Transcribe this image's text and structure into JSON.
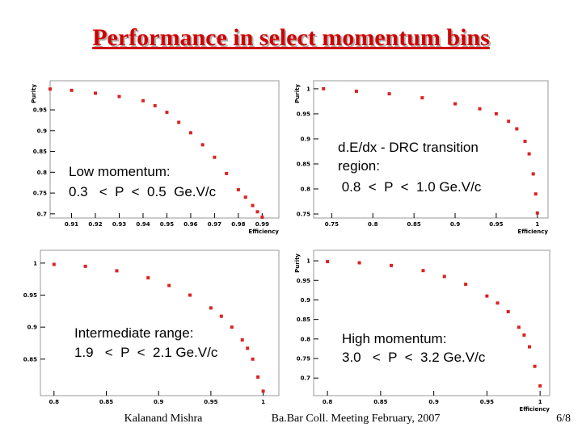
{
  "title": "Performance in select momentum bins",
  "footer": {
    "author": "Kalanand Mishra",
    "meeting": "Ba.Bar Coll. Meeting February, 2007",
    "page": "6/8"
  },
  "chart_data": [
    {
      "type": "scatter",
      "ylabel": "Purity",
      "xlabel": "Efficiency",
      "annotation": [
        "Low momentum:",
        "0.3   <  P  <  0.5  Ge.V/c"
      ],
      "color": "#dd2222",
      "x": [
        0.901,
        0.91,
        0.92,
        0.93,
        0.94,
        0.945,
        0.95,
        0.955,
        0.96,
        0.965,
        0.97,
        0.975,
        0.98,
        0.983,
        0.986,
        0.988,
        0.99
      ],
      "values": [
        1.0,
        0.997,
        0.99,
        0.982,
        0.972,
        0.96,
        0.944,
        0.92,
        0.895,
        0.866,
        0.836,
        0.797,
        0.758,
        0.74,
        0.72,
        0.705,
        0.692
      ],
      "xlim": [
        0.901,
        0.997
      ],
      "ylim": [
        0.69,
        1.02
      ],
      "xticks": [
        0.91,
        0.92,
        0.93,
        0.94,
        0.95,
        0.96,
        0.97,
        0.98,
        0.99
      ],
      "yticks": [
        0.7,
        0.75,
        0.8,
        0.85,
        0.9,
        0.95
      ]
    },
    {
      "type": "scatter",
      "ylabel": "Purity",
      "xlabel": "Efficiency",
      "annotation": [
        "d.E/dx - DRC transition",
        "region:",
        " 0.8  <  P  <  1.0 Ge.V/c"
      ],
      "color": "#dd2222",
      "x": [
        0.74,
        0.78,
        0.82,
        0.86,
        0.9,
        0.93,
        0.95,
        0.965,
        0.975,
        0.985,
        0.99,
        0.995,
        0.998,
        1.0
      ],
      "values": [
        1.0,
        0.995,
        0.99,
        0.982,
        0.97,
        0.96,
        0.95,
        0.935,
        0.92,
        0.895,
        0.87,
        0.83,
        0.79,
        0.752
      ],
      "xlim": [
        0.728,
        1.013
      ],
      "ylim": [
        0.742,
        1.016
      ],
      "xticks": [
        0.75,
        0.8,
        0.85,
        0.9,
        0.95,
        1
      ],
      "yticks": [
        0.75,
        0.8,
        0.85,
        0.9,
        0.95,
        1
      ]
    },
    {
      "type": "scatter",
      "annotation": [
        "Intermediate range:",
        "1.9   <  P  <  2.1 Ge.V/c"
      ],
      "color": "#dd2222",
      "x": [
        0.8,
        0.83,
        0.86,
        0.89,
        0.91,
        0.93,
        0.95,
        0.96,
        0.97,
        0.98,
        0.985,
        0.99,
        0.995,
        1.0
      ],
      "values": [
        0.998,
        0.995,
        0.988,
        0.977,
        0.965,
        0.95,
        0.93,
        0.917,
        0.9,
        0.88,
        0.867,
        0.85,
        0.822,
        0.8
      ],
      "xlim": [
        0.787,
        1.015
      ],
      "ylim": [
        0.793,
        1.02
      ],
      "xticks": [
        0.8,
        0.85,
        0.9,
        0.95,
        1
      ],
      "yticks": [
        0.85,
        0.9,
        0.95,
        1
      ]
    },
    {
      "type": "scatter",
      "ylabel": "Purity",
      "xlabel": "Efficiency",
      "annotation": [
        "High momentum:",
        "3.0   <  P  <  3.2 Ge.V/c"
      ],
      "color": "#dd2222",
      "x": [
        0.8,
        0.83,
        0.86,
        0.89,
        0.91,
        0.93,
        0.95,
        0.96,
        0.97,
        0.98,
        0.985,
        0.99,
        0.995,
        1.0
      ],
      "values": [
        0.998,
        0.995,
        0.988,
        0.975,
        0.96,
        0.94,
        0.91,
        0.892,
        0.87,
        0.83,
        0.81,
        0.78,
        0.73,
        0.68
      ],
      "xlim": [
        0.787,
        1.009
      ],
      "ylim": [
        0.655,
        1.027
      ],
      "xticks": [
        0.8,
        0.85,
        0.9,
        0.95,
        1
      ],
      "yticks": [
        0.7,
        0.75,
        0.8,
        0.85,
        0.9,
        0.95,
        1
      ]
    }
  ]
}
